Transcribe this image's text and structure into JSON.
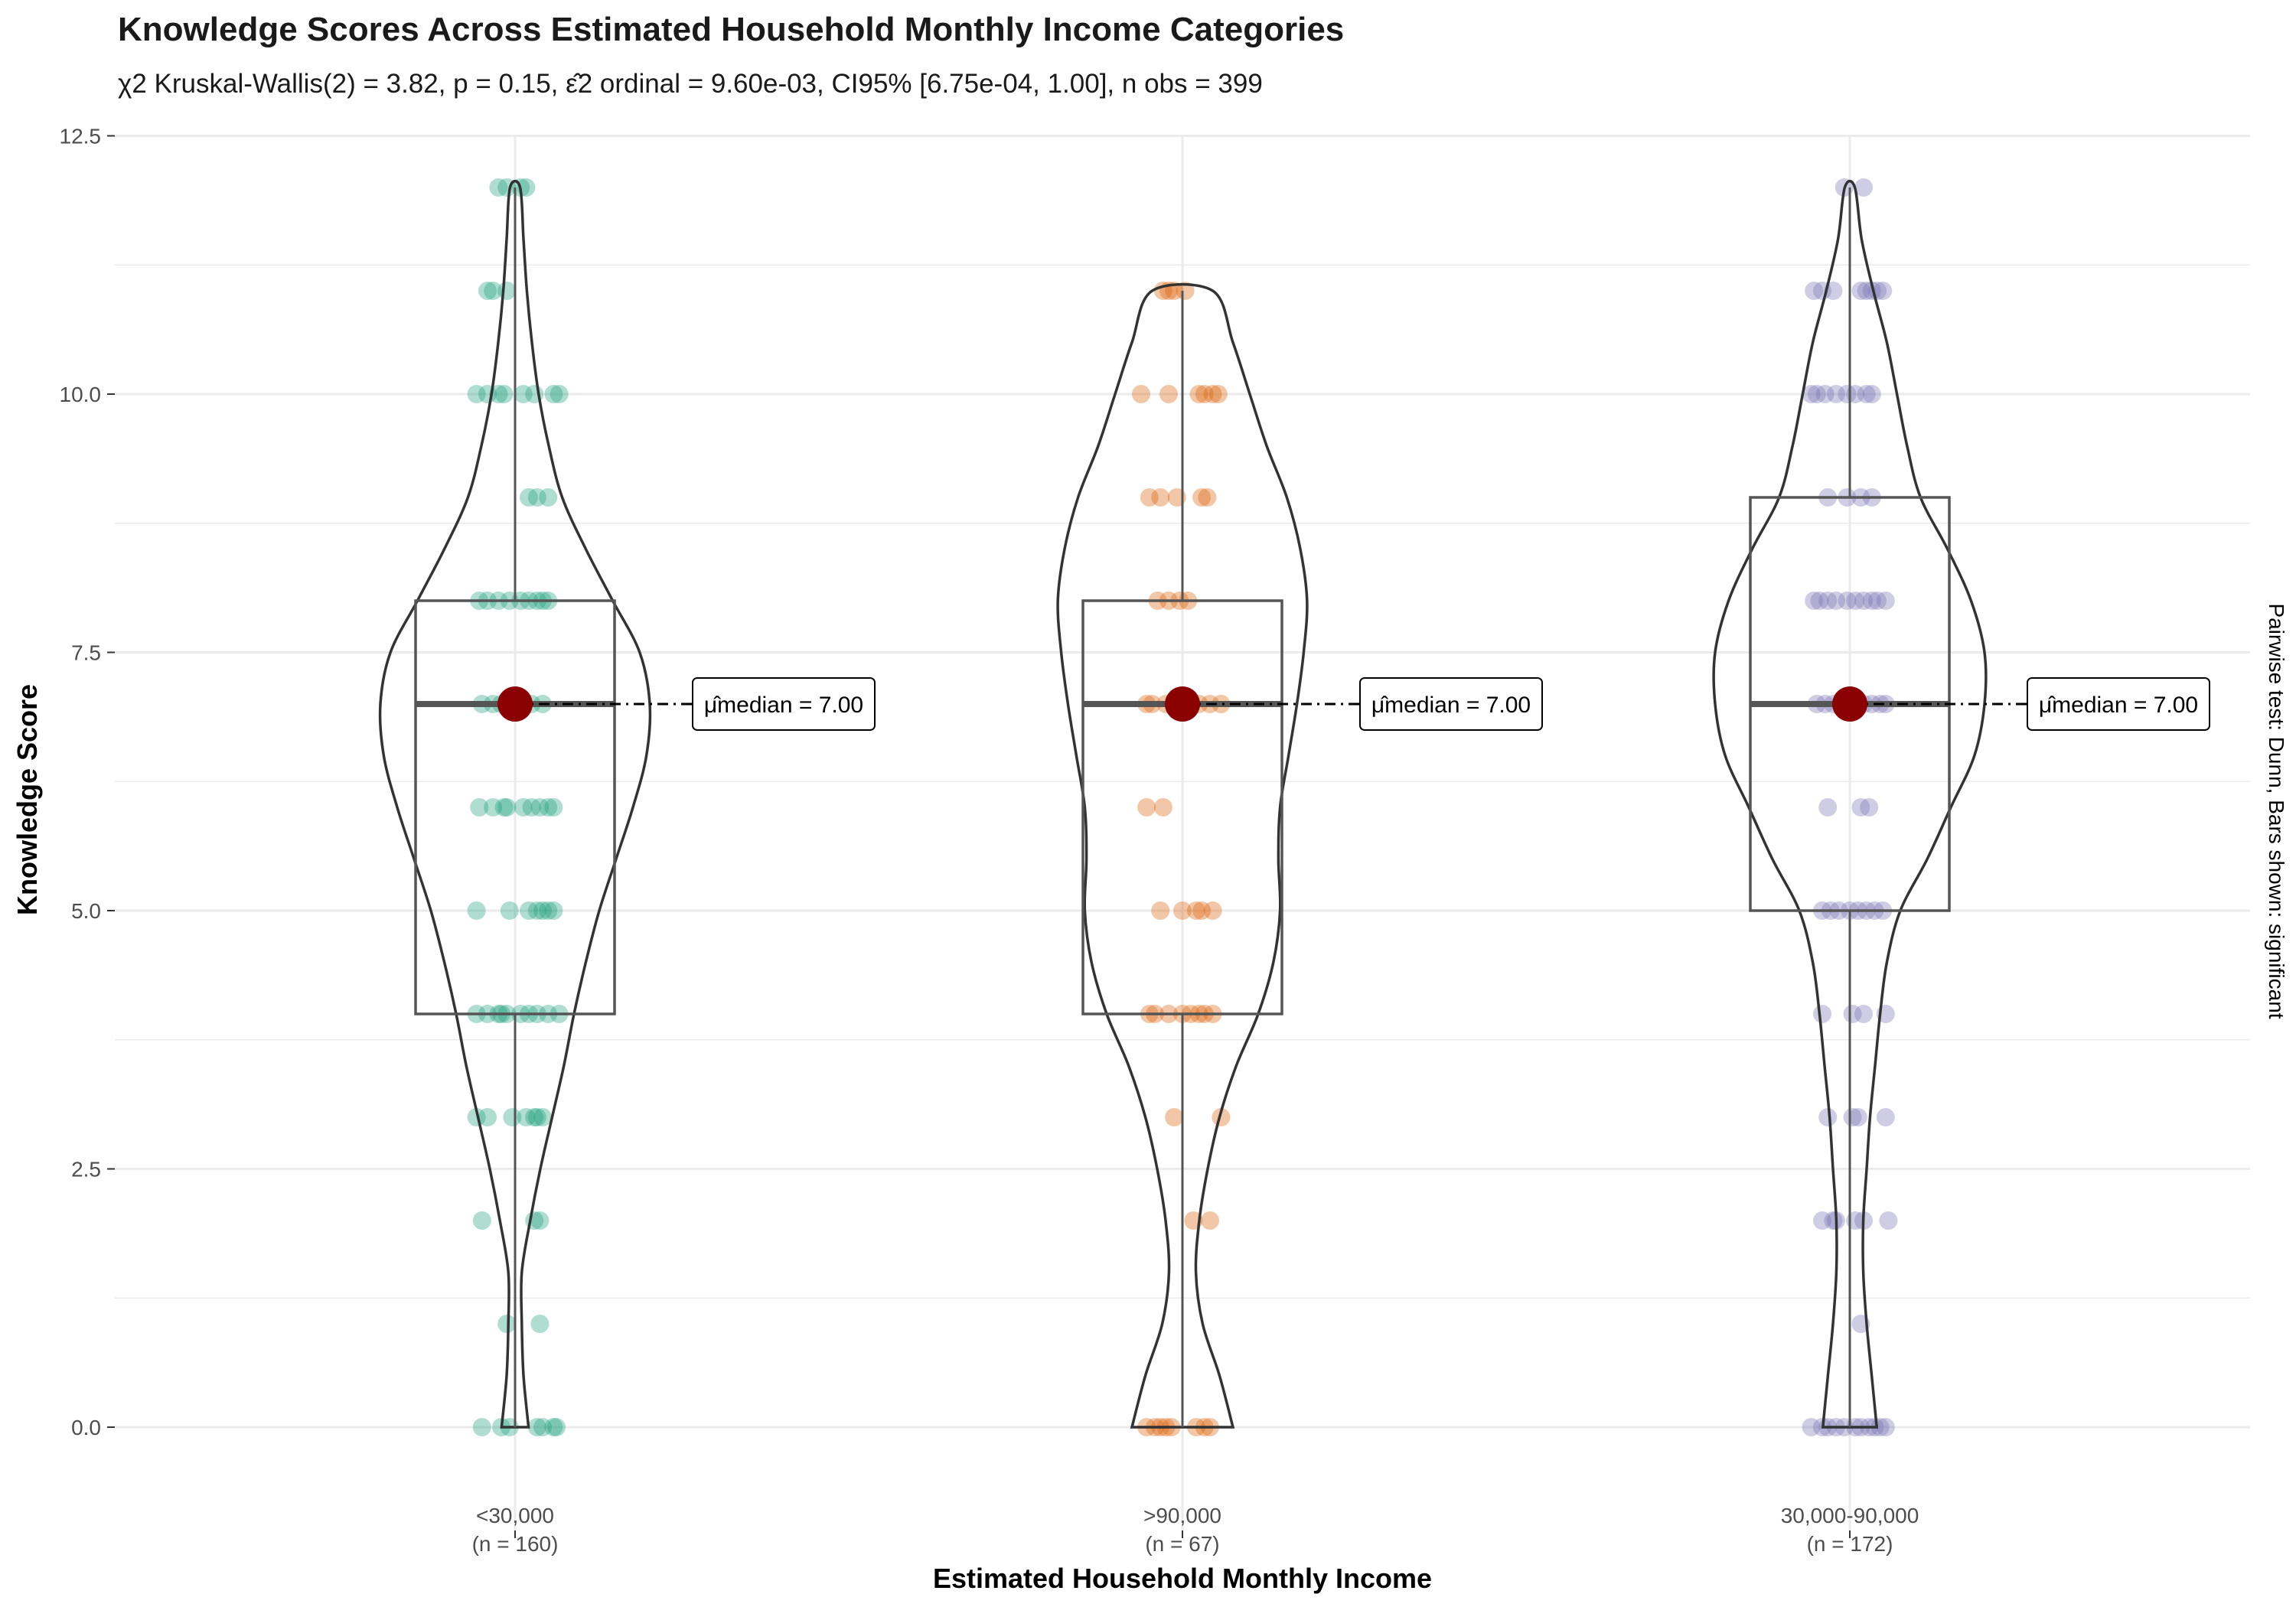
{
  "title": "Knowledge Scores Across Estimated Household Monthly Income Categories",
  "subtitle": "χ2 Kruskal-Wallis(2) = 3.82, p = 0.15, ε̂2 ordinal = 9.60e-03, CI95% [6.75e-04, 1.00], n obs = 399",
  "caption": "Pairwise test: Dunn, Bars shown: significant",
  "colors": {
    "group_1": "#1B9E77",
    "group_2": "#D95F02",
    "group_3": "#7570B3",
    "median_point": "#8B0000",
    "grid": "#EBEBEB",
    "outline": "#333333"
  },
  "chart_data": {
    "type": "violin",
    "title": "Knowledge Scores Across Estimated Household Monthly Income Categories",
    "xlabel": "Estimated Household Monthly Income",
    "ylabel": "Knowledge Score",
    "ylim": [
      -1,
      12.5
    ],
    "yticks": [
      "0.0",
      "2.5",
      "5.0",
      "7.5",
      "10.0",
      "12.5"
    ],
    "grid": true,
    "categories": [
      "<30,000",
      ">90,000",
      "30,000-90,000"
    ],
    "category_counts": [
      "(n = 160)",
      "(n = 67)",
      "(n = 172)"
    ],
    "groups": [
      {
        "name": "<30,000",
        "n": 160,
        "min": 0,
        "q1": 4,
        "median": 7,
        "q3": 8,
        "max": 12,
        "median_label": "μ̂median = 7.00",
        "density": [
          [
            0,
            0.08
          ],
          [
            0.5,
            0.05
          ],
          [
            1,
            0.04
          ],
          [
            1.5,
            0.04
          ],
          [
            2,
            0.09
          ],
          [
            2.5,
            0.15
          ],
          [
            3,
            0.22
          ],
          [
            3.5,
            0.29
          ],
          [
            4,
            0.35
          ],
          [
            4.5,
            0.42
          ],
          [
            5,
            0.5
          ],
          [
            5.5,
            0.6
          ],
          [
            6,
            0.7
          ],
          [
            6.5,
            0.78
          ],
          [
            7,
            0.8
          ],
          [
            7.5,
            0.74
          ],
          [
            8,
            0.58
          ],
          [
            8.5,
            0.42
          ],
          [
            9,
            0.28
          ],
          [
            9.5,
            0.2
          ],
          [
            10,
            0.14
          ],
          [
            10.5,
            0.1
          ],
          [
            11,
            0.07
          ],
          [
            11.5,
            0.05
          ],
          [
            12,
            0.03
          ]
        ],
        "points": [
          [
            0,
            -0.12
          ],
          [
            0,
            -0.05
          ],
          [
            0,
            -0.02
          ],
          [
            0,
            0.08
          ],
          [
            0,
            0.1
          ],
          [
            0,
            0.14
          ],
          [
            0,
            0.15
          ],
          [
            1,
            -0.03
          ],
          [
            1,
            0.09
          ],
          [
            2,
            -0.12
          ],
          [
            2,
            0.07
          ],
          [
            2,
            0.09
          ],
          [
            3,
            -0.14
          ],
          [
            3,
            -0.1
          ],
          [
            3,
            -0.01
          ],
          [
            3,
            0.04
          ],
          [
            3,
            0.07
          ],
          [
            3,
            0.08
          ],
          [
            3,
            0.1
          ],
          [
            4,
            -0.14
          ],
          [
            4,
            -0.1
          ],
          [
            4,
            -0.06
          ],
          [
            4,
            -0.05
          ],
          [
            4,
            -0.03
          ],
          [
            4,
            0.02
          ],
          [
            4,
            0.05
          ],
          [
            4,
            0.08
          ],
          [
            4,
            0.12
          ],
          [
            4,
            0.16
          ],
          [
            5,
            -0.14
          ],
          [
            5,
            -0.02
          ],
          [
            5,
            0.05
          ],
          [
            5,
            0.08
          ],
          [
            5,
            0.1
          ],
          [
            5,
            0.12
          ],
          [
            5,
            0.14
          ],
          [
            6,
            -0.13
          ],
          [
            6,
            -0.08
          ],
          [
            6,
            -0.04
          ],
          [
            6,
            -0.03
          ],
          [
            6,
            0.03
          ],
          [
            6,
            0.06
          ],
          [
            6,
            0.09
          ],
          [
            6,
            0.12
          ],
          [
            6,
            0.14
          ],
          [
            7,
            -0.12
          ],
          [
            7,
            -0.08
          ],
          [
            7,
            -0.05
          ],
          [
            7,
            -0.01
          ],
          [
            7,
            0.03
          ],
          [
            7,
            0.06
          ],
          [
            7,
            0.1
          ],
          [
            8,
            -0.13
          ],
          [
            8,
            -0.1
          ],
          [
            8,
            -0.06
          ],
          [
            8,
            -0.02
          ],
          [
            8,
            0.02
          ],
          [
            8,
            0.05
          ],
          [
            8,
            0.08
          ],
          [
            8,
            0.1
          ],
          [
            8,
            0.12
          ],
          [
            9,
            0.05
          ],
          [
            9,
            0.08
          ],
          [
            9,
            0.12
          ],
          [
            10,
            -0.14
          ],
          [
            10,
            -0.1
          ],
          [
            10,
            -0.06
          ],
          [
            10,
            -0.04
          ],
          [
            10,
            0.03
          ],
          [
            10,
            0.07
          ],
          [
            10,
            0.14
          ],
          [
            10,
            0.16
          ],
          [
            11,
            -0.1
          ],
          [
            11,
            -0.08
          ],
          [
            11,
            -0.03
          ],
          [
            12,
            -0.06
          ],
          [
            12,
            -0.03
          ],
          [
            12,
            0.02
          ],
          [
            12,
            0.04
          ]
        ]
      },
      {
        "name": ">90,000",
        "n": 67,
        "min": 0,
        "q1": 4,
        "median": 7,
        "q3": 8,
        "max": 11,
        "median_label": "μ̂median = 7.00",
        "density": [
          [
            0,
            0.3
          ],
          [
            0.5,
            0.22
          ],
          [
            1,
            0.12
          ],
          [
            1.5,
            0.08
          ],
          [
            2,
            0.1
          ],
          [
            2.5,
            0.15
          ],
          [
            3,
            0.22
          ],
          [
            3.5,
            0.32
          ],
          [
            4,
            0.45
          ],
          [
            4.5,
            0.54
          ],
          [
            5,
            0.58
          ],
          [
            5.5,
            0.57
          ],
          [
            6,
            0.58
          ],
          [
            6.5,
            0.63
          ],
          [
            7,
            0.68
          ],
          [
            7.5,
            0.72
          ],
          [
            8,
            0.74
          ],
          [
            8.5,
            0.7
          ],
          [
            9,
            0.62
          ],
          [
            9.5,
            0.5
          ],
          [
            10,
            0.4
          ],
          [
            10.5,
            0.3
          ],
          [
            11,
            0.18
          ]
        ],
        "points": [
          [
            0,
            -0.13
          ],
          [
            0,
            -0.1
          ],
          [
            0,
            -0.08
          ],
          [
            0,
            -0.06
          ],
          [
            0,
            -0.04
          ],
          [
            0,
            0.05
          ],
          [
            0,
            0.08
          ],
          [
            0,
            0.1
          ],
          [
            2,
            0.04
          ],
          [
            2,
            0.1
          ],
          [
            3,
            -0.03
          ],
          [
            3,
            0.14
          ],
          [
            4,
            -0.12
          ],
          [
            4,
            -0.1
          ],
          [
            4,
            -0.05
          ],
          [
            4,
            0
          ],
          [
            4,
            0.03
          ],
          [
            4,
            0.06
          ],
          [
            4,
            0.08
          ],
          [
            4,
            0.11
          ],
          [
            5,
            -0.08
          ],
          [
            5,
            0
          ],
          [
            5,
            0.05
          ],
          [
            5,
            0.07
          ],
          [
            5,
            0.11
          ],
          [
            6,
            -0.13
          ],
          [
            6,
            -0.07
          ],
          [
            7,
            -0.13
          ],
          [
            7,
            -0.11
          ],
          [
            7,
            -0.06
          ],
          [
            7,
            0.02
          ],
          [
            7,
            0.06
          ],
          [
            7,
            0.1
          ],
          [
            7,
            0.14
          ],
          [
            8,
            -0.09
          ],
          [
            8,
            -0.05
          ],
          [
            8,
            -0.01
          ],
          [
            8,
            0.02
          ],
          [
            9,
            -0.12
          ],
          [
            9,
            -0.08
          ],
          [
            9,
            -0.02
          ],
          [
            9,
            0.07
          ],
          [
            9,
            0.09
          ],
          [
            10,
            -0.15
          ],
          [
            10,
            -0.05
          ],
          [
            10,
            0.06
          ],
          [
            10,
            0.08
          ],
          [
            10,
            0.11
          ],
          [
            10,
            0.13
          ],
          [
            11,
            -0.07
          ],
          [
            11,
            -0.05
          ],
          [
            11,
            -0.03
          ],
          [
            11,
            0.01
          ]
        ]
      },
      {
        "name": "30,000-90,000",
        "n": 172,
        "min": 0,
        "q1": 5,
        "median": 7,
        "q3": 9,
        "max": 12,
        "median_label": "μ̂median = 7.00",
        "density": [
          [
            0,
            0.16
          ],
          [
            0.5,
            0.13
          ],
          [
            1,
            0.1
          ],
          [
            1.5,
            0.08
          ],
          [
            2,
            0.08
          ],
          [
            2.5,
            0.1
          ],
          [
            3,
            0.12
          ],
          [
            3.5,
            0.15
          ],
          [
            4,
            0.18
          ],
          [
            4.5,
            0.22
          ],
          [
            5,
            0.3
          ],
          [
            5.5,
            0.46
          ],
          [
            6,
            0.6
          ],
          [
            6.5,
            0.74
          ],
          [
            7,
            0.8
          ],
          [
            7.5,
            0.8
          ],
          [
            8,
            0.72
          ],
          [
            8.5,
            0.58
          ],
          [
            9,
            0.42
          ],
          [
            9.5,
            0.34
          ],
          [
            10,
            0.28
          ],
          [
            10.5,
            0.22
          ],
          [
            11,
            0.14
          ],
          [
            11.5,
            0.07
          ],
          [
            12,
            0.03
          ]
        ],
        "points": [
          [
            0,
            -0.14
          ],
          [
            0,
            -0.1
          ],
          [
            0,
            -0.08
          ],
          [
            0,
            -0.05
          ],
          [
            0,
            -0.02
          ],
          [
            0,
            0.02
          ],
          [
            0,
            0.04
          ],
          [
            0,
            0.07
          ],
          [
            0,
            0.09
          ],
          [
            0,
            0.11
          ],
          [
            0,
            0.13
          ],
          [
            1,
            0.04
          ],
          [
            2,
            -0.1
          ],
          [
            2,
            -0.06
          ],
          [
            2,
            -0.05
          ],
          [
            2,
            0.02
          ],
          [
            2,
            0.05
          ],
          [
            2,
            0.14
          ],
          [
            3,
            -0.08
          ],
          [
            3,
            0.01
          ],
          [
            3,
            0.03
          ],
          [
            3,
            0.13
          ],
          [
            4,
            -0.1
          ],
          [
            4,
            0.01
          ],
          [
            4,
            0.05
          ],
          [
            4,
            0.13
          ],
          [
            5,
            -0.1
          ],
          [
            5,
            -0.07
          ],
          [
            5,
            -0.04
          ],
          [
            5,
            0
          ],
          [
            5,
            0.03
          ],
          [
            5,
            0.06
          ],
          [
            5,
            0.09
          ],
          [
            5,
            0.12
          ],
          [
            6,
            -0.08
          ],
          [
            6,
            0.04
          ],
          [
            6,
            0.07
          ],
          [
            7,
            -0.12
          ],
          [
            7,
            -0.09
          ],
          [
            7,
            -0.06
          ],
          [
            7,
            -0.02
          ],
          [
            7,
            0.02
          ],
          [
            7,
            0.05
          ],
          [
            7,
            0.08
          ],
          [
            7,
            0.11
          ],
          [
            7,
            0.13
          ],
          [
            8,
            -0.13
          ],
          [
            8,
            -0.11
          ],
          [
            8,
            -0.08
          ],
          [
            8,
            -0.05
          ],
          [
            8,
            -0.01
          ],
          [
            8,
            0.02
          ],
          [
            8,
            0.05
          ],
          [
            8,
            0.08
          ],
          [
            8,
            0.1
          ],
          [
            8,
            0.13
          ],
          [
            9,
            -0.08
          ],
          [
            9,
            -0.01
          ],
          [
            9,
            0.04
          ],
          [
            9,
            0.08
          ],
          [
            10,
            -0.14
          ],
          [
            10,
            -0.12
          ],
          [
            10,
            -0.09
          ],
          [
            10,
            -0.05
          ],
          [
            10,
            -0.01
          ],
          [
            10,
            0.02
          ],
          [
            10,
            0.06
          ],
          [
            10,
            0.08
          ],
          [
            11,
            -0.13
          ],
          [
            11,
            -0.1
          ],
          [
            11,
            -0.06
          ],
          [
            11,
            0.04
          ],
          [
            11,
            0.06
          ],
          [
            11,
            0.08
          ],
          [
            11,
            0.1
          ],
          [
            11,
            0.12
          ],
          [
            12,
            -0.02
          ],
          [
            12,
            0.05
          ]
        ]
      }
    ]
  }
}
